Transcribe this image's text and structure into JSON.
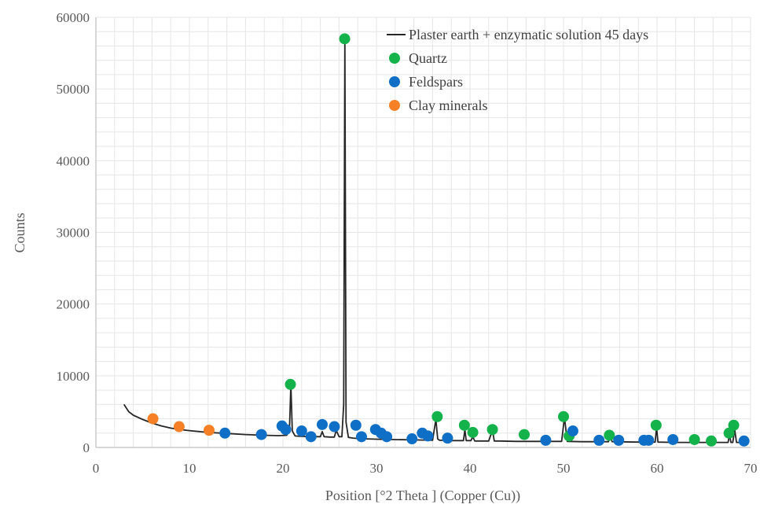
{
  "chart_data": {
    "type": "line",
    "title": "",
    "xlabel": "Position [°2 Theta ] (Copper (Cu))",
    "ylabel": "Counts",
    "xlim": [
      0,
      70
    ],
    "ylim": [
      0,
      60000
    ],
    "x_ticks": [
      0,
      10,
      20,
      30,
      40,
      50,
      60,
      70
    ],
    "y_ticks": [
      0,
      10000,
      20000,
      30000,
      40000,
      50000,
      60000
    ],
    "grid": true,
    "legend_position": "top-right",
    "colors": {
      "line": "#262626",
      "quartz": "#13b24a",
      "feldspars": "#0f6fc6",
      "clay": "#f58025",
      "grid": "#e6e6e6",
      "axis": "#bfbfbf"
    },
    "series": [
      {
        "name": "Plaster earth + enzymatic solution 45 days",
        "kind": "line",
        "x": [
          3.0,
          3.5,
          4,
          5,
          6,
          7,
          8,
          9,
          10,
          12,
          14,
          16,
          18,
          19.5,
          20.4,
          20.7,
          20.85,
          21.0,
          21.3,
          22,
          23,
          24,
          24.2,
          24.4,
          25,
          25.5,
          25.7,
          26.0,
          26.3,
          26.5,
          26.62,
          26.75,
          27.0,
          27.5,
          28,
          29,
          30,
          32,
          34,
          36,
          36.35,
          36.55,
          36.75,
          37.2,
          38,
          39.3,
          39.45,
          39.6,
          40.1,
          40.3,
          40.5,
          42,
          42.4,
          42.6,
          43,
          45,
          48,
          49.8,
          50.1,
          50.4,
          52,
          54,
          54.8,
          55.0,
          55.2,
          58,
          59.8,
          59.95,
          60.1,
          62,
          64,
          66,
          67.6,
          67.75,
          67.9,
          68.1,
          68.3,
          68.5,
          69.3
        ],
        "y": [
          6000,
          5000,
          4500,
          3900,
          3400,
          3000,
          2700,
          2500,
          2350,
          2100,
          1950,
          1800,
          1700,
          1650,
          1700,
          2500,
          8800,
          2300,
          1600,
          1550,
          1500,
          1500,
          2200,
          1500,
          1450,
          1450,
          2400,
          1500,
          1500,
          6000,
          57000,
          3500,
          1400,
          1300,
          1250,
          1200,
          1150,
          1100,
          1050,
          1000,
          3900,
          1200,
          1000,
          1000,
          950,
          950,
          2500,
          950,
          950,
          1500,
          900,
          900,
          2400,
          900,
          900,
          850,
          850,
          850,
          4200,
          850,
          800,
          800,
          800,
          1500,
          800,
          750,
          750,
          2800,
          750,
          700,
          700,
          700,
          700,
          1800,
          700,
          700,
          2500,
          700,
          700
        ]
      },
      {
        "name": "Quartz",
        "kind": "marker",
        "x": [
          20.8,
          26.6,
          36.5,
          39.4,
          40.3,
          42.4,
          45.8,
          50.0,
          50.6,
          54.9,
          59.9,
          64.0,
          65.8,
          67.7,
          68.2
        ],
        "y": [
          8800,
          57000,
          4300,
          3100,
          2100,
          2500,
          1800,
          4300,
          1600,
          1700,
          3100,
          1100,
          900,
          2000,
          3100
        ]
      },
      {
        "name": "Feldspars",
        "kind": "marker",
        "x": [
          13.8,
          17.7,
          19.9,
          20.3,
          22.0,
          23.0,
          24.2,
          25.5,
          27.8,
          28.4,
          29.9,
          30.5,
          31.1,
          33.8,
          34.9,
          35.5,
          37.6,
          48.1,
          51.0,
          53.8,
          55.9,
          58.6,
          59.1,
          61.7,
          69.3
        ],
        "y": [
          2000,
          1800,
          3000,
          2500,
          2300,
          1500,
          3200,
          2900,
          3100,
          1500,
          2500,
          2000,
          1500,
          1200,
          2000,
          1600,
          1300,
          1000,
          2300,
          1000,
          1000,
          1000,
          1000,
          1100,
          900
        ]
      },
      {
        "name": "Clay minerals",
        "kind": "marker",
        "x": [
          6.1,
          8.9,
          12.1
        ],
        "y": [
          4000,
          2900,
          2400
        ]
      }
    ]
  }
}
